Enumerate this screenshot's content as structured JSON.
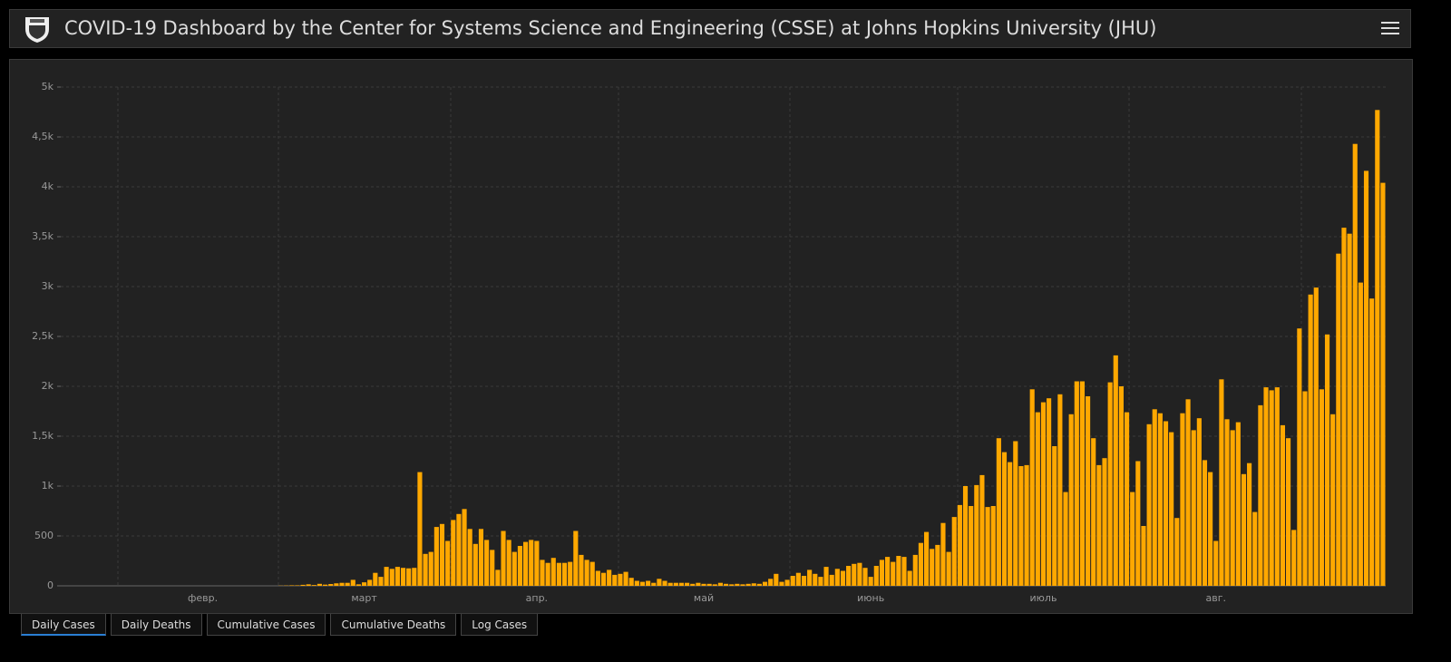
{
  "header": {
    "title": "COVID-19 Dashboard by the Center for Systems Science and Engineering (CSSE) at Johns Hopkins University (JHU)"
  },
  "chart_data": {
    "type": "bar",
    "color": "#ffa800",
    "grid": true,
    "ylim": [
      0,
      5000
    ],
    "yticks": [
      0,
      500,
      {
        "value": 1000,
        "label": "1k"
      },
      {
        "value": 1500,
        "label": "1,5k"
      },
      {
        "value": 2000,
        "label": "2k"
      },
      {
        "value": 2500,
        "label": "2,5k"
      },
      {
        "value": 3000,
        "label": "3k"
      },
      {
        "value": 3500,
        "label": "3,5k"
      },
      {
        "value": 4000,
        "label": "4k"
      },
      {
        "value": 4500,
        "label": "4,5k"
      },
      {
        "value": 5000,
        "label": "5k"
      }
    ],
    "categories": [
      null,
      null,
      null,
      null,
      null,
      null,
      null,
      null,
      null,
      null,
      null,
      null,
      null,
      null,
      null,
      null,
      null,
      null,
      null,
      null,
      null,
      null,
      null,
      null,
      null,
      "февр.",
      null,
      null,
      null,
      null,
      null,
      null,
      null,
      null,
      null,
      null,
      null,
      null,
      null,
      null,
      null,
      null,
      null,
      null,
      null,
      null,
      null,
      null,
      null,
      null,
      null,
      null,
      null,
      null,
      "март",
      null,
      null,
      null,
      null,
      null,
      null,
      null,
      null,
      null,
      null,
      null,
      null,
      null,
      null,
      null,
      null,
      null,
      null,
      null,
      null,
      null,
      null,
      null,
      null,
      null,
      null,
      null,
      null,
      null,
      null,
      "апр.",
      null,
      null,
      null,
      null,
      null,
      null,
      null,
      null,
      null,
      null,
      null,
      null,
      null,
      null,
      null,
      null,
      null,
      null,
      null,
      null,
      null,
      null,
      null,
      null,
      null,
      null,
      null,
      null,
      null,
      "май",
      null,
      null,
      null,
      null,
      null,
      null,
      null,
      null,
      null,
      null,
      null,
      null,
      null,
      null,
      null,
      null,
      null,
      null,
      null,
      null,
      null,
      null,
      null,
      null,
      null,
      null,
      null,
      null,
      null,
      "июнь",
      null,
      null,
      null,
      null,
      null,
      null,
      null,
      null,
      null,
      null,
      null,
      null,
      null,
      null,
      null,
      null,
      null,
      null,
      null,
      null,
      null,
      null,
      null,
      null,
      null,
      null,
      null,
      null,
      null,
      null,
      "июль",
      null,
      null,
      null,
      null,
      null,
      null,
      null,
      null,
      null,
      null,
      null,
      null,
      null,
      null,
      null,
      null,
      null,
      null,
      null,
      null,
      null,
      null,
      null,
      null,
      null,
      null,
      null,
      null,
      null,
      null,
      "авг.",
      null,
      null,
      null,
      null,
      null,
      null,
      null,
      null,
      null,
      null,
      null,
      null,
      null,
      null,
      null,
      null,
      null,
      null,
      null,
      null,
      null,
      null,
      null,
      null,
      null,
      null,
      null,
      null,
      null,
      null
    ],
    "values": [
      0,
      0,
      0,
      0,
      0,
      0,
      0,
      0,
      0,
      0,
      0,
      0,
      0,
      0,
      0,
      0,
      0,
      0,
      0,
      0,
      0,
      0,
      0,
      0,
      0,
      0,
      0,
      0,
      0,
      0,
      0,
      0,
      0,
      0,
      0,
      0,
      0,
      0,
      0,
      2,
      3,
      5,
      5,
      10,
      15,
      8,
      20,
      12,
      18,
      25,
      30,
      30,
      60,
      15,
      35,
      60,
      130,
      90,
      190,
      170,
      190,
      180,
      175,
      180,
      1140,
      320,
      340,
      590,
      620,
      450,
      660,
      720,
      770,
      570,
      420,
      570,
      460,
      360,
      160,
      550,
      460,
      340,
      400,
      440,
      460,
      450,
      260,
      230,
      280,
      230,
      230,
      240,
      550,
      310,
      260,
      240,
      150,
      130,
      160,
      110,
      120,
      140,
      80,
      50,
      40,
      50,
      30,
      70,
      50,
      30,
      30,
      30,
      30,
      20,
      30,
      20,
      20,
      15,
      30,
      20,
      15,
      20,
      15,
      20,
      25,
      20,
      40,
      70,
      120,
      40,
      60,
      100,
      130,
      100,
      160,
      120,
      90,
      190,
      110,
      170,
      150,
      200,
      220,
      230,
      180,
      90,
      200,
      260,
      290,
      240,
      300,
      290,
      150,
      310,
      430,
      540,
      370,
      410,
      630,
      340,
      690,
      810,
      1000,
      800,
      1010,
      1110,
      790,
      800,
      1480,
      1340,
      1240,
      1450,
      1200,
      1210,
      1970,
      1740,
      1840,
      1880,
      1400,
      1920,
      940,
      1720,
      2050,
      2050,
      1900,
      1480,
      1210,
      1280,
      2040,
      2310,
      2000,
      1740,
      940,
      1250,
      600,
      1620,
      1770,
      1730,
      1650,
      1540,
      680,
      1730,
      1870,
      1560,
      1680,
      1260,
      1140,
      450,
      2070,
      1670,
      1560,
      1640,
      1120,
      1230,
      740,
      1810,
      1990,
      1960,
      1990,
      1610,
      1480,
      560,
      2580,
      1950,
      2920,
      2990,
      1970,
      2520,
      1720,
      3330,
      3590,
      3530,
      4430,
      3040,
      4160,
      2880,
      4770,
      4040
    ]
  },
  "tabs": [
    "Daily Cases",
    "Daily Deaths",
    "Cumulative Cases",
    "Cumulative Deaths",
    "Log Cases"
  ]
}
